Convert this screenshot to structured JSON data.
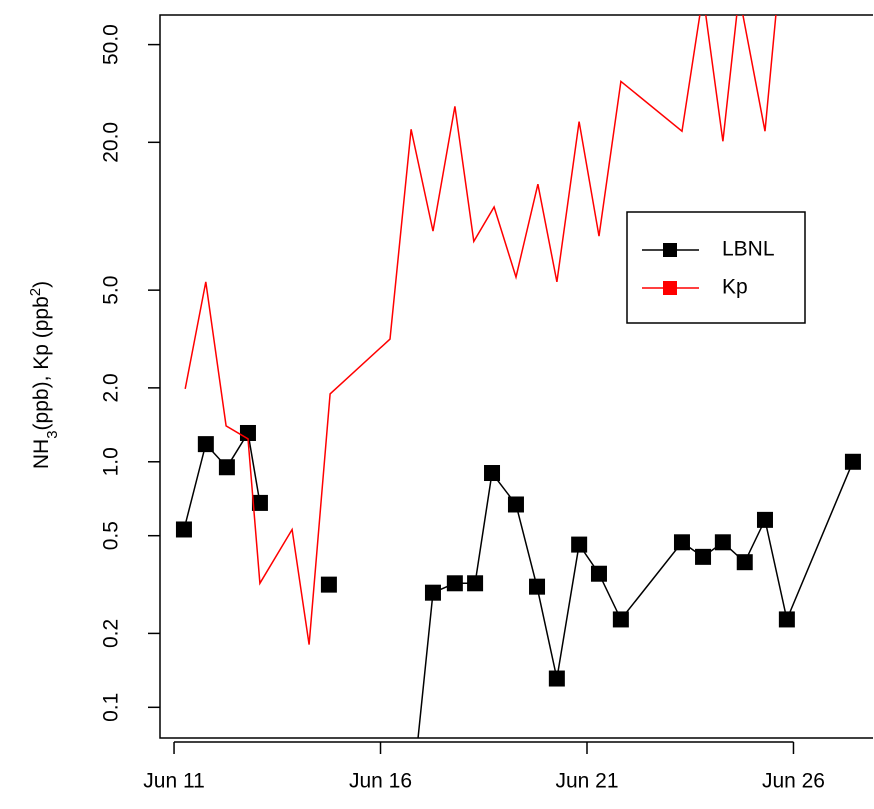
{
  "chart_data": {
    "type": "line",
    "ylabel_parts": [
      "NH",
      "3",
      "(ppb), Kp (ppb",
      "2",
      ")"
    ],
    "log_y": true,
    "xlim": [
      10.66,
      27.95
    ],
    "ylim": [
      0.075,
      66
    ],
    "xticks": [
      {
        "value": 11,
        "label": "Jun 11"
      },
      {
        "value": 16,
        "label": "Jun 16"
      },
      {
        "value": 21,
        "label": "Jun 21"
      },
      {
        "value": 26,
        "label": "Jun 26"
      }
    ],
    "yticks": [
      {
        "value": 50,
        "label": "50.0"
      },
      {
        "value": 20,
        "label": "20.0"
      },
      {
        "value": 5,
        "label": "5.0"
      },
      {
        "value": 2,
        "label": "2.0"
      },
      {
        "value": 1,
        "label": "1.0"
      },
      0.5,
      0.2,
      0.1
    ],
    "legend": "upper-right",
    "series": [
      {
        "name": "LBNL",
        "color": "#000000",
        "markers": true,
        "x": [
          11.24,
          11.77,
          12.28,
          12.79,
          13.08,
          null,
          14.75,
          null,
          16.8,
          17.27,
          17.8,
          18.29,
          18.7,
          19.28,
          19.79,
          20.27,
          20.81,
          21.29,
          21.82,
          23.3,
          23.81,
          24.29,
          24.82,
          25.31,
          25.84,
          27.44
        ],
        "values": [
          0.53,
          1.18,
          0.95,
          1.31,
          0.68,
          null,
          0.316,
          null,
          0.05,
          0.293,
          0.32,
          0.32,
          0.9,
          0.67,
          0.31,
          0.131,
          0.46,
          0.35,
          0.228,
          0.47,
          0.41,
          0.47,
          0.39,
          0.58,
          0.228,
          1.0
        ]
      },
      {
        "name": "Kp",
        "color": "#ff0000",
        "markers": false,
        "x": [
          11.27,
          11.77,
          12.26,
          12.79,
          13.08,
          13.86,
          14.27,
          14.78,
          16.23,
          16.74,
          17.27,
          17.8,
          18.26,
          18.75,
          19.28,
          19.81,
          20.27,
          20.81,
          21.29,
          21.82,
          23.3,
          23.81,
          24.29,
          24.68,
          25.31,
          25.62
        ],
        "values": [
          1.98,
          5.4,
          1.4,
          1.24,
          0.32,
          0.53,
          0.18,
          1.89,
          3.16,
          22.6,
          8.7,
          28,
          7.9,
          10.9,
          5.65,
          13.5,
          5.4,
          24.3,
          8.3,
          35.4,
          22.2,
          80,
          20.2,
          80,
          22.2,
          80
        ]
      }
    ]
  }
}
